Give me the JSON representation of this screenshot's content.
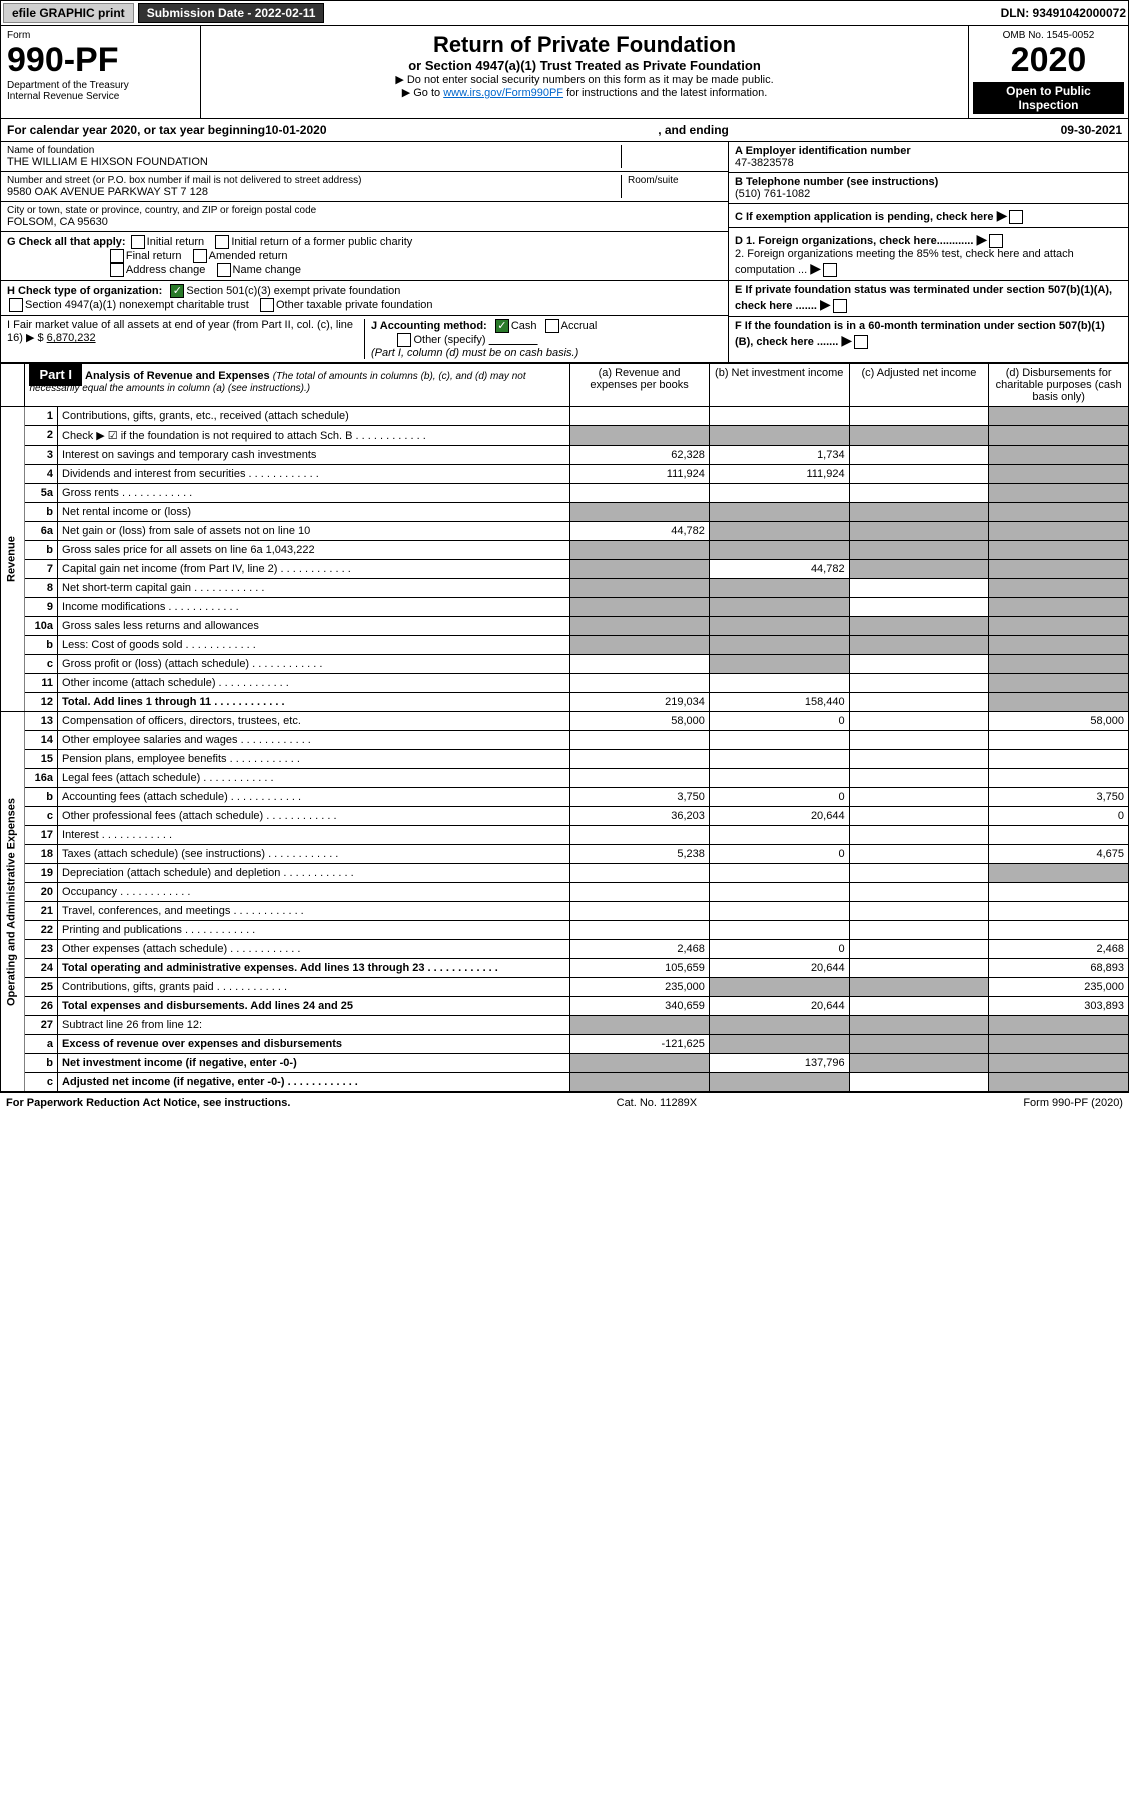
{
  "topbar": {
    "efile": "efile GRAPHIC print",
    "subdate_label": "Submission Date - 2022-02-11",
    "dln": "DLN: 93491042000072"
  },
  "header": {
    "form_label": "Form",
    "form_num": "990-PF",
    "dept": "Department of the Treasury",
    "irs": "Internal Revenue Service",
    "omb": "OMB No. 1545-0052",
    "year": "2020",
    "open": "Open to Public Inspection",
    "title": "Return of Private Foundation",
    "subtitle": "or Section 4947(a)(1) Trust Treated as Private Foundation",
    "instr1": "▶ Do not enter social security numbers on this form as it may be made public.",
    "instr2_pre": "▶ Go to ",
    "instr2_link": "www.irs.gov/Form990PF",
    "instr2_post": " for instructions and the latest information."
  },
  "cal": {
    "pre": "For calendar year 2020, or tax year beginning ",
    "begin": "10-01-2020",
    "mid": ", and ending ",
    "end": "09-30-2021"
  },
  "info": {
    "name_label": "Name of foundation",
    "name": "THE WILLIAM E HIXSON FOUNDATION",
    "addr_label": "Number and street (or P.O. box number if mail is not delivered to street address)",
    "room_label": "Room/suite",
    "addr": "9580 OAK AVENUE PARKWAY ST 7 128",
    "city_label": "City or town, state or province, country, and ZIP or foreign postal code",
    "city": "FOLSOM, CA  95630",
    "ein_label": "A Employer identification number",
    "ein": "47-3823578",
    "phone_label": "B Telephone number (see instructions)",
    "phone": "(510) 761-1082",
    "c": "C If exemption application is pending, check here",
    "d1": "D 1. Foreign organizations, check here............",
    "d2": "2. Foreign organizations meeting the 85% test, check here and attach computation ...",
    "e": "E  If private foundation status was terminated under section 507(b)(1)(A), check here .......",
    "f": "F  If the foundation is in a 60-month termination under section 507(b)(1)(B), check here .......",
    "g_label": "G Check all that apply:",
    "g_opts": [
      "Initial return",
      "Initial return of a former public charity",
      "Final return",
      "Amended return",
      "Address change",
      "Name change"
    ],
    "h_label": "H Check type of organization:",
    "h1": "Section 501(c)(3) exempt private foundation",
    "h2": "Section 4947(a)(1) nonexempt charitable trust",
    "h3": "Other taxable private foundation",
    "i_label": "I Fair market value of all assets at end of year (from Part II, col. (c), line 16) ▶ $",
    "i_val": "6,870,232",
    "j_label": "J Accounting method:",
    "j_cash": "Cash",
    "j_accrual": "Accrual",
    "j_other": "Other (specify)",
    "j_note": "(Part I, column (d) must be on cash basis.)"
  },
  "part1": {
    "tab": "Part I",
    "title": "Analysis of Revenue and Expenses",
    "note": "(The total of amounts in columns (b), (c), and (d) may not necessarily equal the amounts in column (a) (see instructions).)",
    "cols": {
      "a": "(a) Revenue and expenses per books",
      "b": "(b) Net investment income",
      "c": "(c) Adjusted net income",
      "d": "(d) Disbursements for charitable purposes (cash basis only)"
    },
    "side_rev": "Revenue",
    "side_exp": "Operating and Administrative Expenses"
  },
  "rows": [
    {
      "n": "1",
      "d": "Contributions, gifts, grants, etc., received (attach schedule)",
      "a": "",
      "b": "",
      "c": "",
      "dd": "",
      "shade_d": true
    },
    {
      "n": "2",
      "d": "Check ▶ ☑ if the foundation is not required to attach Sch. B",
      "dots": true,
      "a": "",
      "b": "",
      "shade_a": true,
      "shade_b": true,
      "shade_c": true,
      "shade_d": true
    },
    {
      "n": "3",
      "d": "Interest on savings and temporary cash investments",
      "a": "62,328",
      "b": "1,734",
      "c": "",
      "dd": "",
      "shade_d": true
    },
    {
      "n": "4",
      "d": "Dividends and interest from securities",
      "dots": true,
      "a": "111,924",
      "b": "111,924",
      "c": "",
      "dd": "",
      "shade_d": true
    },
    {
      "n": "5a",
      "d": "Gross rents",
      "dots": true,
      "a": "",
      "b": "",
      "c": "",
      "dd": "",
      "shade_d": true
    },
    {
      "n": "b",
      "d": "Net rental income or (loss)",
      "uline": true,
      "shade_a": true,
      "shade_b": true,
      "shade_c": true,
      "shade_d": true
    },
    {
      "n": "6a",
      "d": "Net gain or (loss) from sale of assets not on line 10",
      "a": "44,782",
      "shade_b": true,
      "shade_c": true,
      "shade_d": true
    },
    {
      "n": "b",
      "d": "Gross sales price for all assets on line 6a",
      "uline_val": "1,043,222",
      "shade_a": true,
      "shade_b": true,
      "shade_c": true,
      "shade_d": true
    },
    {
      "n": "7",
      "d": "Capital gain net income (from Part IV, line 2)",
      "dots": true,
      "shade_a": true,
      "b": "44,782",
      "shade_c": true,
      "shade_d": true
    },
    {
      "n": "8",
      "d": "Net short-term capital gain",
      "dots": true,
      "shade_a": true,
      "shade_b": true,
      "c": "",
      "shade_d": true
    },
    {
      "n": "9",
      "d": "Income modifications",
      "dots": true,
      "shade_a": true,
      "shade_b": true,
      "c": "",
      "shade_d": true
    },
    {
      "n": "10a",
      "d": "Gross sales less returns and allowances",
      "uline": true,
      "shade_a": true,
      "shade_b": true,
      "shade_c": true,
      "shade_d": true
    },
    {
      "n": "b",
      "d": "Less: Cost of goods sold",
      "dots": true,
      "uline": true,
      "shade_a": true,
      "shade_b": true,
      "shade_c": true,
      "shade_d": true
    },
    {
      "n": "c",
      "d": "Gross profit or (loss) (attach schedule)",
      "dots": true,
      "a": "",
      "shade_b": true,
      "c": "",
      "shade_d": true
    },
    {
      "n": "11",
      "d": "Other income (attach schedule)",
      "dots": true,
      "a": "",
      "b": "",
      "c": "",
      "shade_d": true
    },
    {
      "n": "12",
      "d": "Total. Add lines 1 through 11",
      "dots": true,
      "bold": true,
      "a": "219,034",
      "b": "158,440",
      "c": "",
      "shade_d": true
    },
    {
      "n": "13",
      "d": "Compensation of officers, directors, trustees, etc.",
      "a": "58,000",
      "b": "0",
      "c": "",
      "dd": "58,000"
    },
    {
      "n": "14",
      "d": "Other employee salaries and wages",
      "dots": true,
      "a": "",
      "b": "",
      "c": "",
      "dd": ""
    },
    {
      "n": "15",
      "d": "Pension plans, employee benefits",
      "dots": true,
      "a": "",
      "b": "",
      "c": "",
      "dd": ""
    },
    {
      "n": "16a",
      "d": "Legal fees (attach schedule)",
      "dots": true,
      "a": "",
      "b": "",
      "c": "",
      "dd": ""
    },
    {
      "n": "b",
      "d": "Accounting fees (attach schedule)",
      "dots": true,
      "a": "3,750",
      "b": "0",
      "c": "",
      "dd": "3,750"
    },
    {
      "n": "c",
      "d": "Other professional fees (attach schedule)",
      "dots": true,
      "a": "36,203",
      "b": "20,644",
      "c": "",
      "dd": "0"
    },
    {
      "n": "17",
      "d": "Interest",
      "dots": true,
      "a": "",
      "b": "",
      "c": "",
      "dd": ""
    },
    {
      "n": "18",
      "d": "Taxes (attach schedule) (see instructions)",
      "dots": true,
      "a": "5,238",
      "b": "0",
      "c": "",
      "dd": "4,675"
    },
    {
      "n": "19",
      "d": "Depreciation (attach schedule) and depletion",
      "dots": true,
      "a": "",
      "b": "",
      "c": "",
      "shade_d": true
    },
    {
      "n": "20",
      "d": "Occupancy",
      "dots": true,
      "a": "",
      "b": "",
      "c": "",
      "dd": ""
    },
    {
      "n": "21",
      "d": "Travel, conferences, and meetings",
      "dots": true,
      "a": "",
      "b": "",
      "c": "",
      "dd": ""
    },
    {
      "n": "22",
      "d": "Printing and publications",
      "dots": true,
      "a": "",
      "b": "",
      "c": "",
      "dd": ""
    },
    {
      "n": "23",
      "d": "Other expenses (attach schedule)",
      "dots": true,
      "a": "2,468",
      "b": "0",
      "c": "",
      "dd": "2,468"
    },
    {
      "n": "24",
      "d": "Total operating and administrative expenses. Add lines 13 through 23",
      "dots": true,
      "bold": true,
      "a": "105,659",
      "b": "20,644",
      "c": "",
      "dd": "68,893"
    },
    {
      "n": "25",
      "d": "Contributions, gifts, grants paid",
      "dots": true,
      "a": "235,000",
      "shade_b": true,
      "shade_c": true,
      "dd": "235,000"
    },
    {
      "n": "26",
      "d": "Total expenses and disbursements. Add lines 24 and 25",
      "bold": true,
      "a": "340,659",
      "b": "20,644",
      "c": "",
      "dd": "303,893"
    },
    {
      "n": "27",
      "d": "Subtract line 26 from line 12:",
      "shade_a": true,
      "shade_b": true,
      "shade_c": true,
      "shade_d": true
    },
    {
      "n": "a",
      "d": "Excess of revenue over expenses and disbursements",
      "bold": true,
      "a": "-121,625",
      "shade_b": true,
      "shade_c": true,
      "shade_d": true
    },
    {
      "n": "b",
      "d": "Net investment income (if negative, enter -0-)",
      "bold": true,
      "shade_a": true,
      "b": "137,796",
      "shade_c": true,
      "shade_d": true
    },
    {
      "n": "c",
      "d": "Adjusted net income (if negative, enter -0-)",
      "dots": true,
      "bold": true,
      "shade_a": true,
      "shade_b": true,
      "c": "",
      "shade_d": true
    }
  ],
  "footer": {
    "left": "For Paperwork Reduction Act Notice, see instructions.",
    "mid": "Cat. No. 11289X",
    "right": "Form 990-PF (2020)"
  }
}
